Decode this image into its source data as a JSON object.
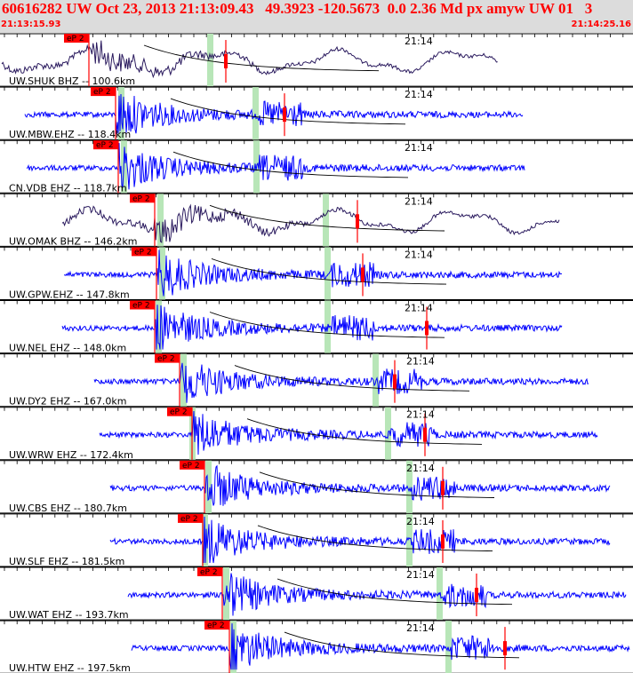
{
  "header": {
    "title": "60616282 UW Oct 23, 2013 21:13:09.43   49.3923 -120.5673  0.0 2.36 Md px amyw UW 01   3",
    "start_time": "21:13:15.93",
    "end_time": "21:14:25.16"
  },
  "minute_label": "21:14",
  "colors": {
    "header_bg": "#dcdcdc",
    "header_text": "#ff0000",
    "trace_blue": "#0000ff",
    "trace_dark": "#2a1a5e",
    "pick_red": "#ff0000",
    "window_green": "#b8e6b8",
    "moveout": "#000000"
  },
  "traces": [
    {
      "label": "UW.SHUK BHZ -- 100.6km",
      "pick": "eP 2",
      "style": "broadband"
    },
    {
      "label": "UW.MBW.EHZ -- 118.4km",
      "pick": "eP 2",
      "style": "short"
    },
    {
      "label": "CN.VDB EHZ -- 118.7km",
      "pick": "eP 2",
      "style": "short"
    },
    {
      "label": "UW.OMAK BHZ -- 146.2km",
      "pick": "eP 2",
      "style": "broadband"
    },
    {
      "label": "UW.GPW.EHZ -- 147.8km",
      "pick": "eP 2",
      "style": "short"
    },
    {
      "label": "UW.NEL EHZ -- 148.0km",
      "pick": "eP 2",
      "style": "short"
    },
    {
      "label": "UW.DY2 EHZ -- 167.0km",
      "pick": "eP 2",
      "style": "short"
    },
    {
      "label": "UW.WRW EHZ -- 172.4km",
      "pick": "eP 2",
      "style": "short"
    },
    {
      "label": "UW.CBS EHZ -- 180.7km",
      "pick": "eP 2",
      "style": "short"
    },
    {
      "label": "UW.SLF EHZ -- 181.5km",
      "pick": "eP 2",
      "style": "short"
    },
    {
      "label": "UW.WAT EHZ -- 193.7km",
      "pick": "eP 2",
      "style": "short"
    },
    {
      "label": "UW.HTW EHZ -- 197.5km",
      "pick": "eP 2",
      "style": "short"
    }
  ]
}
